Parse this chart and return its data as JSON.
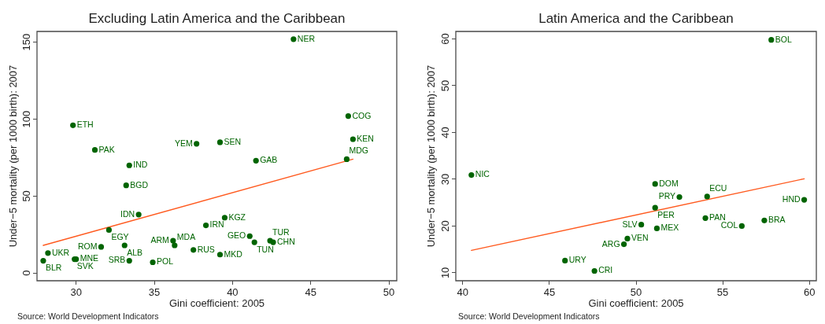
{
  "chart_data": [
    {
      "type": "scatter",
      "title": "Excluding Latin America and the Caribbean",
      "xlabel": "Gini coefficient: 2005",
      "ylabel": "Under−5 mortality (per 1000 birth): 2007",
      "xlim": [
        27.5,
        50.5
      ],
      "ylim": [
        -5,
        157
      ],
      "xticks": [
        30,
        35,
        40,
        45,
        50
      ],
      "yticks": [
        0,
        50,
        100,
        150
      ],
      "marker": "circle",
      "series": [
        {
          "type": "scatter",
          "color": "#006400",
          "x": [
            43.9,
            47.4,
            29.8,
            47.7,
            39.2,
            37.7,
            31.2,
            47.3,
            41.5,
            33.4,
            33.2,
            34.0,
            39.5,
            38.3,
            32.1,
            41.1,
            36.2,
            41.4,
            42.4,
            42.6,
            36.3,
            33.1,
            31.6,
            37.5,
            28.2,
            39.2,
            29.9,
            30.0,
            33.4,
            27.9,
            34.9
          ],
          "values": [
            152,
            102,
            96,
            87,
            85,
            84,
            80,
            74,
            73,
            70,
            57,
            38,
            36,
            31,
            28,
            24,
            21,
            20,
            21,
            20,
            18,
            18,
            17,
            15,
            13,
            12,
            9,
            9,
            8,
            8,
            7
          ]
        },
        {
          "type": "line",
          "color": "#ff5a1f",
          "marker": "none",
          "x": [
            27.9,
            47.7
          ],
          "values": [
            18,
            74
          ]
        }
      ],
      "annotations": [
        {
          "text": "NER",
          "x": 43.9,
          "y": 152
        },
        {
          "text": "COG",
          "x": 47.4,
          "y": 102
        },
        {
          "text": "ETH",
          "x": 29.8,
          "y": 96
        },
        {
          "text": "KEN",
          "x": 47.7,
          "y": 87
        },
        {
          "text": "SEN",
          "x": 39.2,
          "y": 85
        },
        {
          "text": "YEM",
          "x": 37.7,
          "y": 84
        },
        {
          "text": "PAK",
          "x": 31.2,
          "y": 80
        },
        {
          "text": "MDG",
          "x": 47.3,
          "y": 74
        },
        {
          "text": "GAB",
          "x": 41.5,
          "y": 73
        },
        {
          "text": "IND",
          "x": 33.4,
          "y": 70
        },
        {
          "text": "BGD",
          "x": 33.2,
          "y": 57
        },
        {
          "text": "IDN",
          "x": 34.0,
          "y": 38
        },
        {
          "text": "KGZ",
          "x": 39.5,
          "y": 36
        },
        {
          "text": "IRN",
          "x": 38.3,
          "y": 31
        },
        {
          "text": "EGY",
          "x": 32.1,
          "y": 28
        },
        {
          "text": "GEO",
          "x": 41.1,
          "y": 24
        },
        {
          "text": "ARM",
          "x": 36.2,
          "y": 21
        },
        {
          "text": "TUN",
          "x": 41.4,
          "y": 20
        },
        {
          "text": "TUR",
          "x": 42.4,
          "y": 21
        },
        {
          "text": "CHN",
          "x": 42.6,
          "y": 20
        },
        {
          "text": "MDA",
          "x": 36.3,
          "y": 18
        },
        {
          "text": "ALB",
          "x": 33.1,
          "y": 18
        },
        {
          "text": "ROM",
          "x": 31.6,
          "y": 17
        },
        {
          "text": "RUS",
          "x": 37.5,
          "y": 15
        },
        {
          "text": "UKR",
          "x": 28.2,
          "y": 13
        },
        {
          "text": "MKD",
          "x": 39.2,
          "y": 12
        },
        {
          "text": "SVK",
          "x": 29.9,
          "y": 9
        },
        {
          "text": "MNE",
          "x": 30.0,
          "y": 9
        },
        {
          "text": "SRB",
          "x": 33.4,
          "y": 8
        },
        {
          "text": "BLR",
          "x": 27.9,
          "y": 8
        },
        {
          "text": "POL",
          "x": 34.9,
          "y": 7
        },
        "Source: World Development Indicators"
      ]
    },
    {
      "type": "scatter",
      "title": "Latin America and the Caribbean",
      "xlabel": "Gini coefficient: 2005",
      "ylabel": "Under−5 mortality (per 1000 birth): 2007",
      "xlim": [
        39.6,
        60.4
      ],
      "ylim": [
        8.3,
        61.6
      ],
      "xticks": [
        40,
        45,
        50,
        55,
        60
      ],
      "yticks": [
        10,
        20,
        30,
        40,
        50,
        60
      ],
      "marker": "circle",
      "series": [
        {
          "type": "scatter",
          "color": "#006400",
          "x": [
            57.8,
            40.5,
            51.1,
            54.1,
            52.5,
            59.7,
            51.1,
            54.0,
            57.4,
            50.3,
            56.1,
            51.2,
            49.5,
            49.3,
            45.9,
            47.6
          ],
          "values": [
            59.8,
            30.9,
            29.0,
            26.3,
            26.2,
            25.6,
            23.9,
            21.7,
            21.2,
            20.3,
            20.0,
            19.5,
            17.3,
            16.1,
            12.6,
            10.4
          ]
        },
        {
          "type": "line",
          "color": "#ff5a1f",
          "marker": "none",
          "x": [
            40.5,
            59.7
          ],
          "values": [
            14.8,
            30.1
          ]
        }
      ],
      "annotations": [
        {
          "text": "BOL",
          "x": 57.8,
          "y": 59.8
        },
        {
          "text": "NIC",
          "x": 40.5,
          "y": 30.9
        },
        {
          "text": "DOM",
          "x": 51.1,
          "y": 29.0
        },
        {
          "text": "ECU",
          "x": 54.1,
          "y": 26.3
        },
        {
          "text": "PRY",
          "x": 52.5,
          "y": 26.2
        },
        {
          "text": "HND",
          "x": 59.7,
          "y": 25.6
        },
        {
          "text": "PER",
          "x": 51.1,
          "y": 23.9
        },
        {
          "text": "PAN",
          "x": 54.0,
          "y": 21.7
        },
        {
          "text": "BRA",
          "x": 57.4,
          "y": 21.2
        },
        {
          "text": "SLV",
          "x": 50.3,
          "y": 20.3
        },
        {
          "text": "COL",
          "x": 56.1,
          "y": 20.0
        },
        {
          "text": "MEX",
          "x": 51.2,
          "y": 19.5
        },
        {
          "text": "VEN",
          "x": 49.5,
          "y": 17.3
        },
        {
          "text": "ARG",
          "x": 49.3,
          "y": 16.1
        },
        {
          "text": "URY",
          "x": 45.9,
          "y": 12.6
        },
        {
          "text": "CRI",
          "x": 47.6,
          "y": 10.4
        },
        "Source: World Development Indicators"
      ]
    }
  ]
}
